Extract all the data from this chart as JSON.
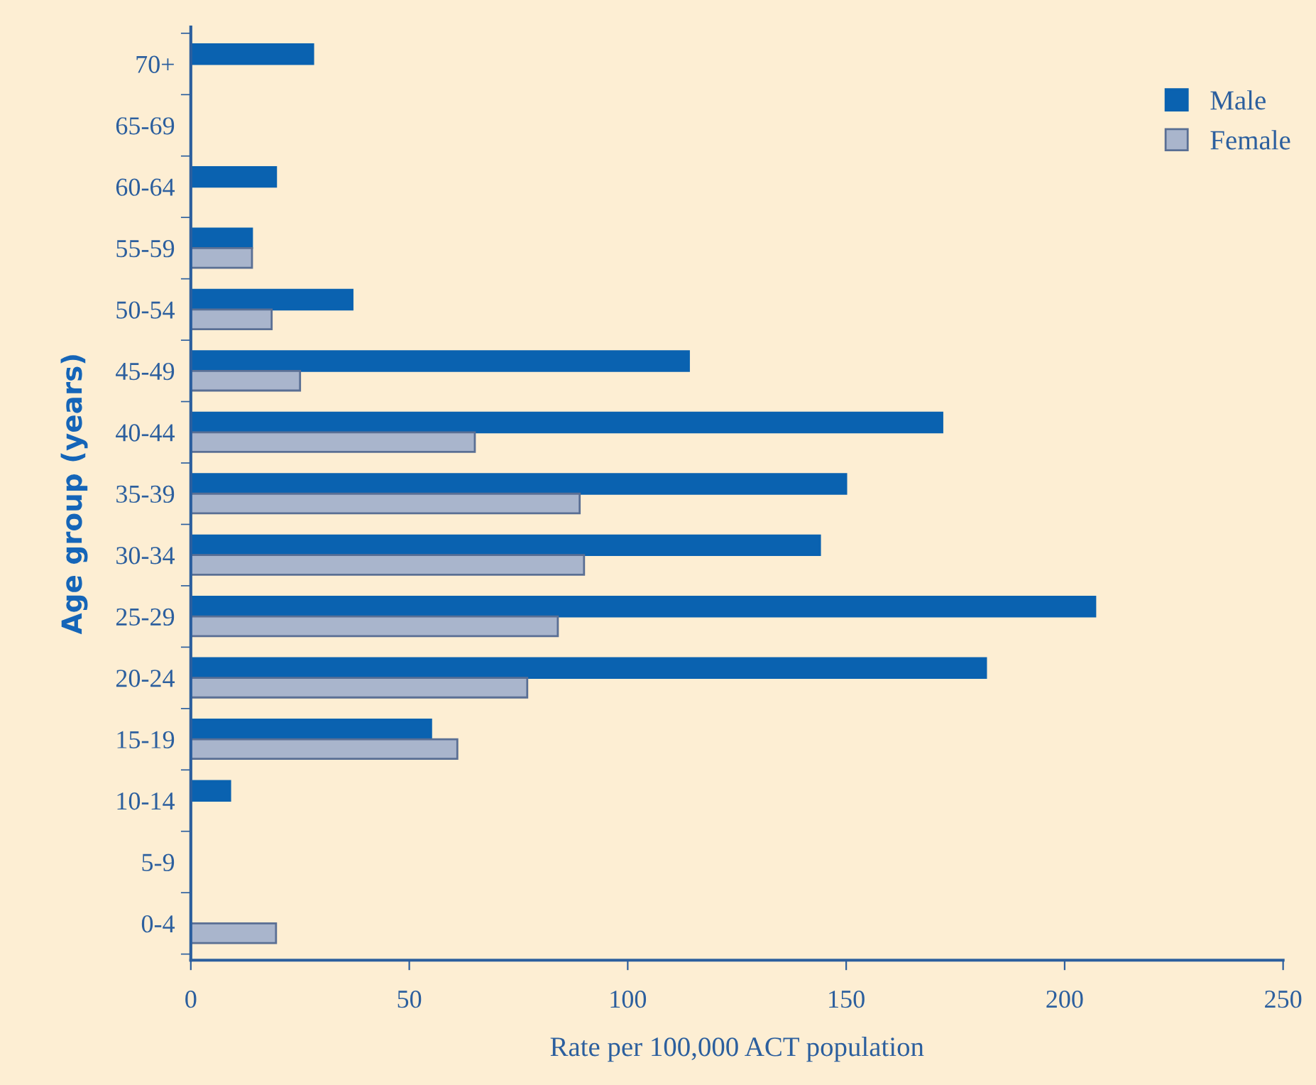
{
  "chart_data": {
    "type": "bar",
    "orientation": "horizontal",
    "xlabel": "Rate per 100,000 ACT population",
    "ylabel": "Age group (years)",
    "categories": [
      "70+",
      "65-69",
      "60-64",
      "55-59",
      "50-54",
      "45-49",
      "40-44",
      "35-39",
      "30-34",
      "25-29",
      "20-24",
      "15-19",
      "10-14",
      "5-9",
      "0-4"
    ],
    "series": [
      {
        "name": "Male",
        "color": "#0a62b0",
        "values": [
          28,
          null,
          19.5,
          14,
          37,
          114,
          172,
          150,
          144,
          207,
          182,
          55,
          9,
          null,
          null
        ]
      },
      {
        "name": "Female",
        "color": "#a9b5cc",
        "values": [
          null,
          null,
          null,
          14,
          18.5,
          25,
          65,
          89,
          90,
          84,
          77,
          61,
          null,
          null,
          19.5
        ]
      }
    ],
    "xlim": [
      0,
      250
    ],
    "xticks": [
      0,
      50,
      100,
      150,
      200,
      250
    ],
    "grid": false,
    "legend": "top right"
  }
}
